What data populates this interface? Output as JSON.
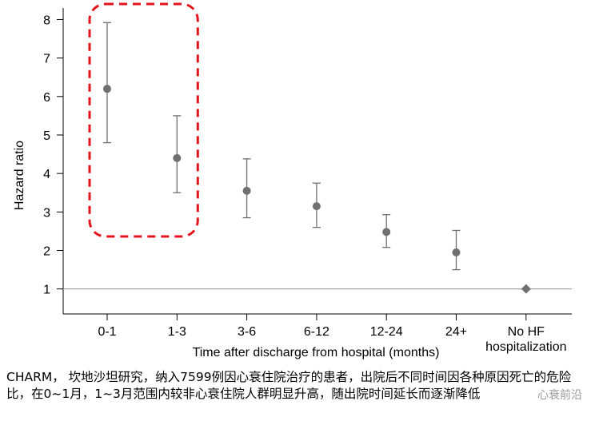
{
  "chart_data": {
    "type": "scatter",
    "subtype": "point-estimate-with-error-bars",
    "categories": [
      "0-1",
      "1-3",
      "3-6",
      "6-12",
      "12-24",
      "24+",
      "No HF\nhospitalization"
    ],
    "series": [
      {
        "values": [
          6.2,
          4.4,
          3.55,
          3.15,
          2.48,
          1.95,
          1.0
        ],
        "lower": [
          4.8,
          3.5,
          2.85,
          2.6,
          2.08,
          1.5,
          null
        ],
        "upper": [
          7.92,
          5.5,
          4.38,
          3.75,
          2.93,
          2.52,
          null
        ],
        "markers": [
          "circle",
          "circle",
          "circle",
          "circle",
          "circle",
          "circle",
          "diamond"
        ]
      }
    ],
    "xlabel": "Time after discharge from hospital (months)",
    "ylabel": "Hazard ratio",
    "yticks": [
      1,
      2,
      3,
      4,
      5,
      6,
      7,
      8
    ],
    "ylim": [
      0.35,
      8.3
    ],
    "reference_line": 1,
    "grid": false,
    "highlight": {
      "categories": [
        "0-1",
        "1-3"
      ],
      "style": "dashed",
      "color": "#e3141b"
    },
    "colors": {
      "marker": "#707070",
      "errorbar": "#707070",
      "reference": "#9a9a9a",
      "axis": "#000000"
    }
  },
  "caption": "CHARM， 坎地沙坦研究，纳入7599例因心衰住院治疗的患者，出院后不同时间因各种原因死亡的危险比，在0~1月，1~3月范围内较非心衰住院人群明显升高，随出院时间延长而逐渐降低",
  "watermark": "心衰前沿"
}
